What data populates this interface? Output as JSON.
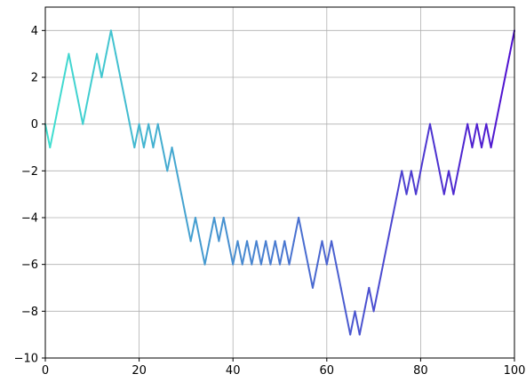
{
  "chart_data": {
    "type": "line",
    "title": "",
    "xlabel": "",
    "ylabel": "",
    "xlim": [
      0,
      100
    ],
    "ylim": [
      -10,
      5
    ],
    "grid": true,
    "x_ticks": [
      0,
      20,
      40,
      60,
      80,
      100
    ],
    "y_ticks": [
      -10,
      -8,
      -6,
      -4,
      -2,
      0,
      2,
      4
    ],
    "x_tick_labels": [
      "0",
      "20",
      "40",
      "60",
      "80",
      "100"
    ],
    "y_tick_labels": [
      "−10",
      "−8",
      "−6",
      "−4",
      "−2",
      "0",
      "2",
      "4"
    ],
    "color_start": "#40e0d0",
    "color_end": "#5010d0",
    "x": [
      0,
      1,
      2,
      3,
      4,
      5,
      6,
      7,
      8,
      9,
      10,
      11,
      12,
      13,
      14,
      15,
      16,
      17,
      18,
      19,
      20,
      21,
      22,
      23,
      24,
      25,
      26,
      27,
      28,
      29,
      30,
      31,
      32,
      33,
      34,
      35,
      36,
      37,
      38,
      39,
      40,
      41,
      42,
      43,
      44,
      45,
      46,
      47,
      48,
      49,
      50,
      51,
      52,
      53,
      54,
      55,
      56,
      57,
      58,
      59,
      60,
      61,
      62,
      63,
      64,
      65,
      66,
      67,
      68,
      69,
      70,
      71,
      72,
      73,
      74,
      75,
      76,
      77,
      78,
      79,
      80,
      81,
      82,
      83,
      84,
      85,
      86,
      87,
      88,
      89,
      90,
      91,
      92,
      93,
      94,
      95,
      96,
      97,
      98,
      99,
      100
    ],
    "y": [
      0,
      -1,
      0,
      1,
      2,
      3,
      2,
      1,
      0,
      1,
      2,
      3,
      2,
      3,
      4,
      3,
      2,
      1,
      0,
      -1,
      0,
      -1,
      0,
      -1,
      0,
      -1,
      -2,
      -1,
      -2,
      -3,
      -4,
      -5,
      -4,
      -5,
      -6,
      -5,
      -4,
      -5,
      -4,
      -5,
      -6,
      -5,
      -6,
      -5,
      -6,
      -5,
      -6,
      -5,
      -6,
      -5,
      -6,
      -5,
      -6,
      -5,
      -4,
      -5,
      -6,
      -7,
      -6,
      -5,
      -6,
      -5,
      -6,
      -7,
      -8,
      -9,
      -8,
      -9,
      -8,
      -7,
      -8,
      -7,
      -6,
      -5,
      -4,
      -3,
      -2,
      -3,
      -2,
      -3,
      -2,
      -1,
      0,
      -1,
      -2,
      -3,
      -2,
      -3,
      -2,
      -1,
      0,
      -1,
      0,
      -1,
      0,
      -1,
      0,
      1,
      2,
      3,
      4
    ]
  }
}
